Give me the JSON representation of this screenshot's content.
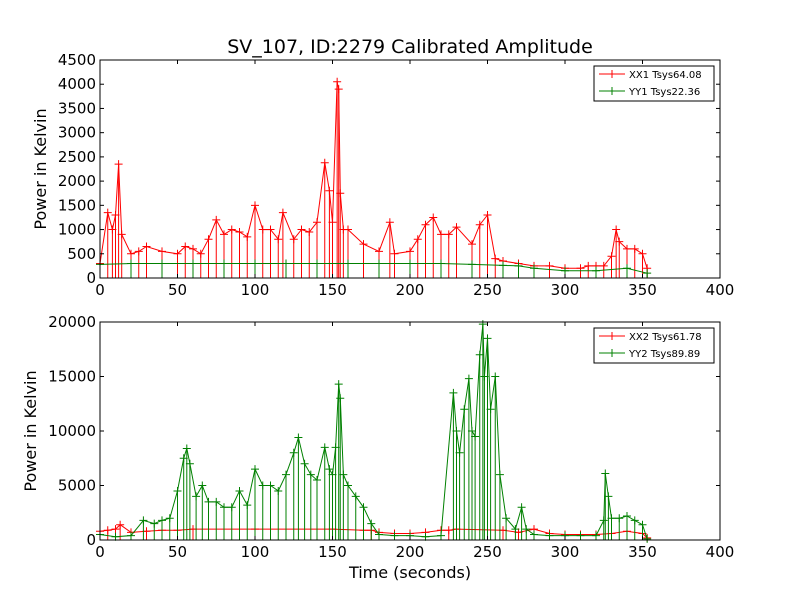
{
  "chart_data": [
    {
      "type": "line",
      "title": "SV_107, ID:2279 Calibrated Amplitude",
      "xlabel": "",
      "ylabel": "Power in Kelvin",
      "xlim": [
        0,
        400
      ],
      "ylim": [
        0,
        4500
      ],
      "xticks": [
        "0",
        "50",
        "100",
        "150",
        "200",
        "250",
        "300",
        "350",
        "400"
      ],
      "yticks": [
        "0",
        "500",
        "1000",
        "1500",
        "2000",
        "2500",
        "3000",
        "3500",
        "4000",
        "4500"
      ],
      "legend_position": "top-right",
      "grid": false,
      "series": [
        {
          "name": "XX1 Tsys64.08",
          "color": "#ff0000",
          "marker": "plus",
          "x": [
            0,
            5,
            8,
            10,
            12,
            14,
            20,
            25,
            30,
            40,
            50,
            55,
            60,
            65,
            70,
            75,
            80,
            85,
            90,
            95,
            100,
            105,
            110,
            115,
            118,
            125,
            130,
            135,
            140,
            145,
            148,
            150,
            153,
            154,
            155,
            157,
            160,
            170,
            180,
            187,
            190,
            200,
            205,
            210,
            215,
            220,
            225,
            230,
            240,
            245,
            250,
            255,
            260,
            270,
            280,
            290,
            300,
            310,
            315,
            320,
            325,
            330,
            333,
            335,
            340,
            345,
            350,
            353
          ],
          "y": [
            300,
            1350,
            1000,
            1300,
            2350,
            900,
            500,
            550,
            650,
            550,
            500,
            650,
            600,
            500,
            800,
            1200,
            900,
            1000,
            950,
            850,
            1500,
            1000,
            1000,
            800,
            1350,
            800,
            1000,
            950,
            1150,
            2380,
            1800,
            1150,
            4050,
            3900,
            1750,
            1000,
            1000,
            700,
            550,
            1150,
            500,
            550,
            800,
            1100,
            1250,
            900,
            900,
            1050,
            700,
            1100,
            1300,
            400,
            350,
            300,
            250,
            250,
            200,
            200,
            250,
            250,
            250,
            450,
            1000,
            750,
            600,
            600,
            500,
            200
          ]
        },
        {
          "name": "YY1 Tsys22.36",
          "color": "#008000",
          "marker": "plus",
          "x": [
            0,
            20,
            40,
            60,
            80,
            100,
            120,
            140,
            160,
            180,
            200,
            220,
            240,
            260,
            270,
            280,
            300,
            320,
            340,
            353
          ],
          "y": [
            280,
            300,
            300,
            300,
            300,
            300,
            300,
            300,
            300,
            300,
            300,
            300,
            280,
            260,
            250,
            200,
            150,
            150,
            200,
            100
          ]
        }
      ]
    },
    {
      "type": "line",
      "title": "",
      "xlabel": "Time (seconds)",
      "ylabel": "Power in Kelvin",
      "xlim": [
        0,
        400
      ],
      "ylim": [
        0,
        20000
      ],
      "xticks": [
        "0",
        "50",
        "100",
        "150",
        "200",
        "250",
        "300",
        "350",
        "400"
      ],
      "yticks": [
        "0",
        "5000",
        "10000",
        "15000",
        "20000"
      ],
      "legend_position": "top-right",
      "grid": false,
      "series": [
        {
          "name": "XX2 Tsys61.78",
          "color": "#ff0000",
          "marker": "plus",
          "x": [
            0,
            5,
            10,
            13,
            20,
            30,
            40,
            50,
            60,
            100,
            150,
            170,
            175,
            180,
            190,
            200,
            210,
            220,
            225,
            230,
            260,
            270,
            280,
            290,
            300,
            310,
            320,
            330,
            340,
            350,
            353
          ],
          "y": [
            800,
            900,
            1000,
            1400,
            700,
            800,
            900,
            900,
            1000,
            1000,
            1000,
            900,
            900,
            700,
            600,
            600,
            700,
            900,
            900,
            1000,
            900,
            700,
            1000,
            600,
            500,
            500,
            500,
            600,
            800,
            600,
            200
          ]
        },
        {
          "name": "YY2 Tsys89.89",
          "color": "#008000",
          "marker": "plus",
          "x": [
            0,
            10,
            20,
            28,
            35,
            40,
            45,
            50,
            54,
            56,
            58,
            62,
            66,
            70,
            75,
            80,
            85,
            90,
            95,
            100,
            105,
            110,
            115,
            120,
            125,
            128,
            132,
            136,
            140,
            145,
            148,
            150,
            152,
            154,
            155,
            157,
            160,
            165,
            170,
            175,
            180,
            190,
            200,
            210,
            220,
            228,
            230,
            232,
            235,
            238,
            240,
            242,
            245,
            247,
            248,
            250,
            252,
            255,
            258,
            262,
            268,
            272,
            275,
            280,
            290,
            300,
            310,
            320,
            325,
            326,
            328,
            330,
            335,
            340,
            345,
            350,
            353
          ],
          "y": [
            500,
            300,
            400,
            1800,
            1500,
            1800,
            2000,
            4500,
            7500,
            8400,
            7000,
            4000,
            5000,
            3500,
            3500,
            3000,
            3000,
            4500,
            3200,
            6500,
            5000,
            5000,
            4500,
            6000,
            8000,
            9400,
            7000,
            6000,
            5500,
            8500,
            6500,
            6000,
            8500,
            14300,
            13000,
            6000,
            5000,
            4000,
            3000,
            1500,
            500,
            400,
            400,
            300,
            400,
            13500,
            10000,
            8000,
            12000,
            14800,
            10000,
            9500,
            17000,
            19800,
            15000,
            18500,
            12000,
            15000,
            6000,
            2000,
            1000,
            3000,
            1000,
            500,
            400,
            400,
            400,
            400,
            1800,
            6100,
            4000,
            2000,
            2000,
            2200,
            1800,
            1400,
            100
          ]
        }
      ]
    }
  ]
}
